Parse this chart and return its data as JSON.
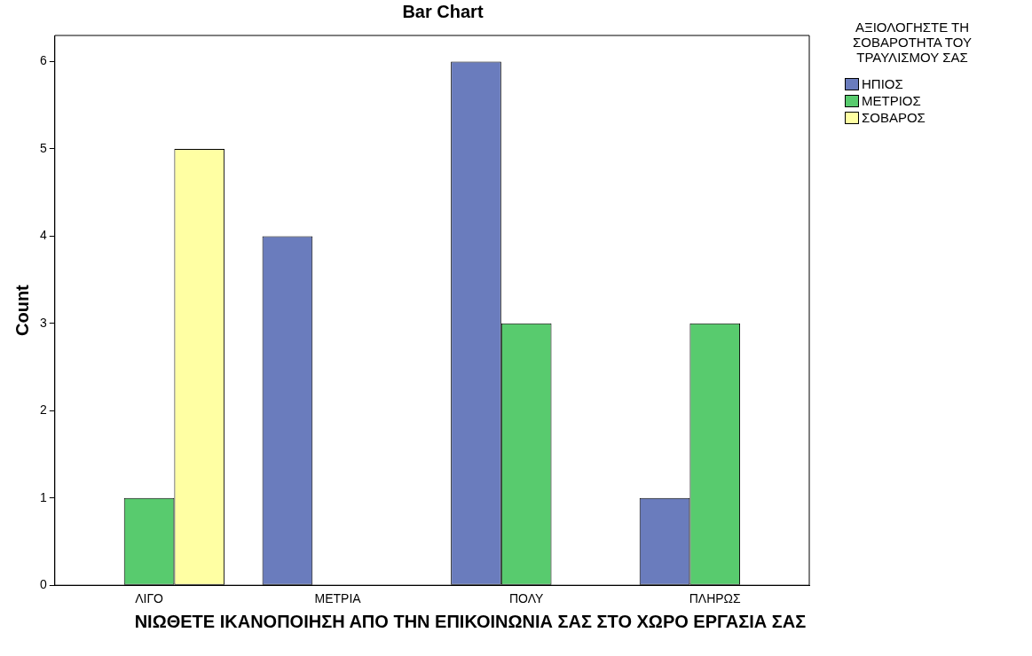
{
  "chart_data": {
    "type": "bar",
    "title": "Bar Chart",
    "xlabel": "ΝΙΩΘΕΤΕ ΙΚΑΝΟΠΟΙΗΣΗ ΑΠΟ ΤΗΝ ΕΠΙΚΟΙΝΩΝΙΑ ΣΑΣ ΣΤΟ ΧΩΡΟ ΕΡΓΑΣΙΑ ΣΑΣ",
    "ylabel": "Count",
    "legend_title": "ΑΞΙΟΛΟΓΗΣΤΕ ΤΗ ΣΟΒΑΡΟΤΗΤΑ ΤΟΥ ΤΡΑΥΛΙΣΜΟΥ ΣΑΣ",
    "categories": [
      "ΛΙΓΟ",
      "ΜΕΤΡΙΑ",
      "ΠΟΛΥ",
      "ΠΛΗΡΩΣ"
    ],
    "series": [
      {
        "name": "ΗΠΙΟΣ",
        "color": "#6a7cbd",
        "values": [
          null,
          4,
          6,
          1
        ]
      },
      {
        "name": "ΜΕΤΡΙΟΣ",
        "color": "#58cb6e",
        "values": [
          1,
          null,
          3,
          3
        ]
      },
      {
        "name": "ΣΟΒΑΡΟΣ",
        "color": "#ffffa3",
        "values": [
          5,
          null,
          null,
          null
        ]
      }
    ],
    "ylim": [
      0,
      6.3
    ],
    "yticks": [
      0,
      1,
      2,
      3,
      4,
      5,
      6
    ],
    "grid": false,
    "legend": "top right"
  }
}
